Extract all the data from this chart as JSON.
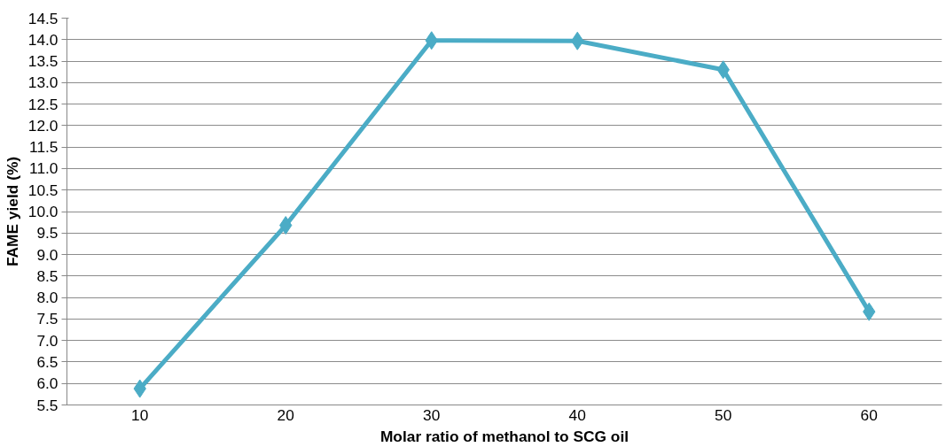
{
  "chart_data": {
    "type": "line",
    "xlabel": "Molar ratio of methanol to SCG oil",
    "ylabel": "FAME yield (%)",
    "categories": [
      "10",
      "20",
      "30",
      "40",
      "50",
      "60"
    ],
    "series": [
      {
        "color": "#4bacc6",
        "values": [
          5.88,
          9.68,
          13.98,
          13.97,
          13.3,
          7.67
        ]
      }
    ],
    "ylim": [
      5.5,
      14.5
    ],
    "yticks": [
      5.5,
      {
        "value": 6,
        "label": "6.0"
      },
      6.5,
      {
        "value": 7,
        "label": "7.0"
      },
      7.5,
      {
        "value": 8,
        "label": "8.0"
      },
      8.5,
      {
        "value": 9,
        "label": "9.0"
      },
      9.5,
      {
        "value": 10,
        "label": "10.0"
      },
      10.5,
      {
        "value": 11,
        "label": "11.0"
      },
      11.5,
      {
        "value": 12,
        "label": "12.0"
      },
      12.5,
      {
        "value": 13,
        "label": "13.0"
      },
      13.5,
      {
        "value": 14,
        "label": "14.0"
      },
      14.5
    ],
    "grid": "y",
    "marker": "diamond",
    "line_style": "solid"
  }
}
